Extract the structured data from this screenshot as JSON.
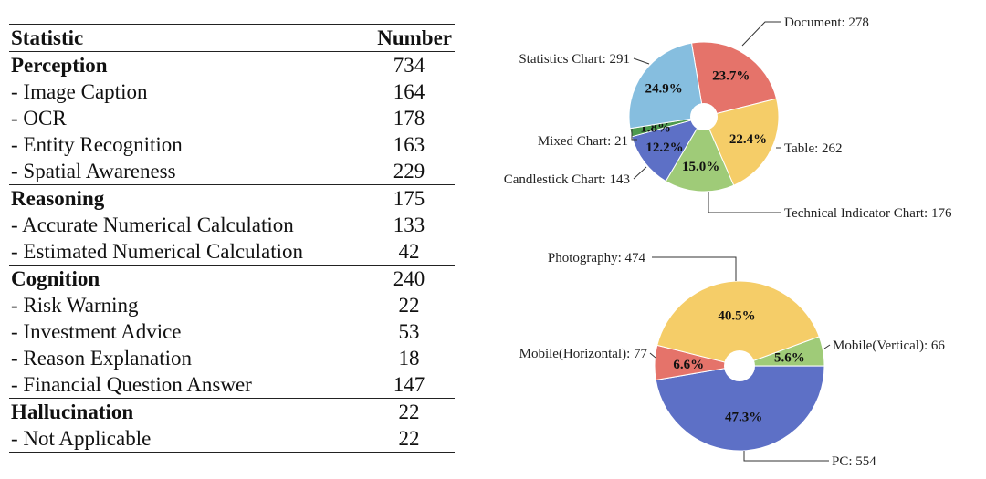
{
  "table": {
    "headers": [
      "Statistic",
      "Number"
    ],
    "groups": [
      {
        "name": "Perception",
        "value": "734",
        "items": [
          {
            "label": "- Image Caption",
            "value": "164"
          },
          {
            "label": "- OCR",
            "value": "178"
          },
          {
            "label": "- Entity Recognition",
            "value": "163"
          },
          {
            "label": "- Spatial Awareness",
            "value": "229"
          }
        ]
      },
      {
        "name": "Reasoning",
        "value": "175",
        "items": [
          {
            "label": "- Accurate Numerical Calculation",
            "value": "133"
          },
          {
            "label": "- Estimated Numerical Calculation",
            "value": "42"
          }
        ]
      },
      {
        "name": "Cognition",
        "value": "240",
        "items": [
          {
            "label": "- Risk Warning",
            "value": "22"
          },
          {
            "label": "- Investment Advice",
            "value": "53"
          },
          {
            "label": "- Reason Explanation",
            "value": "18"
          },
          {
            "label": "- Financial Question Answer",
            "value": "147"
          }
        ]
      },
      {
        "name": "Hallucination",
        "value": "22",
        "items": [
          {
            "label": "- Not Applicable",
            "value": "22"
          }
        ]
      }
    ]
  },
  "chart_data": [
    {
      "type": "pie",
      "slices": [
        {
          "label": "Document: 278",
          "value": 278,
          "percent": "23.7%",
          "color": "#e5736a"
        },
        {
          "label": "Table: 262",
          "value": 262,
          "percent": "22.4%",
          "color": "#f5cd68"
        },
        {
          "label": "Technical Indicator Chart: 176",
          "value": 176,
          "percent": "15.0%",
          "color": "#9fcb78"
        },
        {
          "label": "Candlestick Chart: 143",
          "value": 143,
          "percent": "12.2%",
          "color": "#5d70c6"
        },
        {
          "label": "Mixed Chart: 21",
          "value": 21,
          "percent": "1.8%",
          "color": "#4e9a4e"
        },
        {
          "label": "Statistics Chart: 291",
          "value": 291,
          "percent": "24.9%",
          "color": "#86bedf"
        }
      ]
    },
    {
      "type": "pie",
      "slices": [
        {
          "label": "Mobile(Vertical): 66",
          "value": 66,
          "percent": "5.6%",
          "color": "#9fcb78"
        },
        {
          "label": "PC: 554",
          "value": 554,
          "percent": "47.3%",
          "color": "#5d70c6"
        },
        {
          "label": "Mobile(Horizontal): 77",
          "value": 77,
          "percent": "6.6%",
          "color": "#e5736a"
        },
        {
          "label": "Photography: 474",
          "value": 474,
          "percent": "40.5%",
          "color": "#f5cd68"
        }
      ]
    }
  ]
}
